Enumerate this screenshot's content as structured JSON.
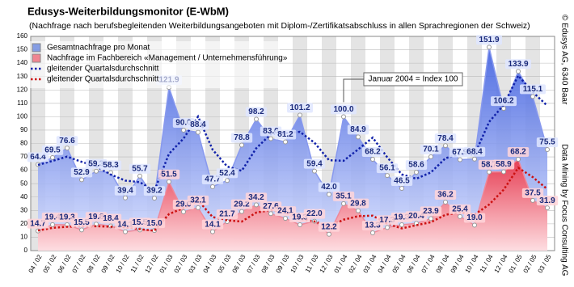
{
  "chart_data": {
    "type": "line",
    "title": "Edusys-Weiterbildungsmonitor (E-WbM)",
    "subtitle": "(Nachfrage nach berufsbegleitenden Weiterbildungsangeboten mit Diplom-/Zertifikatsabschluss in allen Sprachregionen der Schweiz)",
    "categories": [
      "04 / 02",
      "05 / 02",
      "06 / 02",
      "07 / 02",
      "08 / 02",
      "09 / 02",
      "10 / 02",
      "11 / 02",
      "12 / 02",
      "01 / 03",
      "02 / 03",
      "03 / 03",
      "04 / 03",
      "05 / 03",
      "06 / 03",
      "07 / 03",
      "08 / 03",
      "09 / 03",
      "10 / 03",
      "11 / 03",
      "12 / 03",
      "01 / 04",
      "02 / 04",
      "03 / 04",
      "04 / 04",
      "05 / 04",
      "06 / 04",
      "07 / 04",
      "08 / 04",
      "09 / 04",
      "10 / 04",
      "11 / 04",
      "12 / 04",
      "01 / 05",
      "02 / 05",
      "03 / 05"
    ],
    "series": [
      {
        "name": "Gesamtnachfrage pro Monat",
        "kind": "area",
        "color": "#5577dd",
        "values": [
          64.4,
          69.5,
          76.6,
          52.9,
          59.3,
          58.3,
          39.4,
          55.7,
          39.2,
          121.9,
          90.0,
          88.4,
          47.7,
          52.4,
          78.8,
          98.2,
          83.6,
          81.2,
          101.2,
          59.4,
          42.0,
          100.0,
          84.9,
          68.2,
          56.1,
          46.5,
          58.6,
          70.1,
          78.4,
          67.9,
          68.4,
          151.9,
          106.2,
          133.9,
          115.1,
          75.5
        ],
        "value_labels": [
          "64.4",
          "69.5",
          "76.6",
          "52.9",
          "59.3",
          "58.3",
          "39.4",
          "55.7",
          "39.2",
          "121.9",
          "90.0",
          "88.4",
          "47.7",
          "52.4",
          "78.8",
          "98.2",
          "83.6",
          "81.2",
          "101.2",
          "59.4",
          "42.0",
          "100.0",
          "84.9",
          "68.2",
          "56.1",
          "46.5",
          "58.6",
          "70.1",
          "78.4",
          "67.9",
          "68.4",
          "151.9",
          "106.2",
          "133.9",
          "115.1",
          "75.5"
        ]
      },
      {
        "name": "Nachfrage im Fachbereich «Management / Unternehmensführung»",
        "kind": "area",
        "color": "#ee5566",
        "values": [
          14.7,
          19.4,
          19.3,
          15.5,
          19.8,
          18.4,
          14.1,
          15.5,
          15.0,
          51.5,
          29.0,
          32.1,
          14.1,
          21.7,
          29.2,
          34.2,
          27.6,
          24.1,
          19.3,
          22.0,
          12.2,
          35.1,
          29.8,
          13.3,
          17.3,
          19.3,
          20.4,
          23.9,
          36.2,
          25.4,
          19.0,
          58.7,
          58.9,
          68.2,
          37.5,
          31.9
        ],
        "value_labels": [
          "14.7",
          "19.4",
          "19.3",
          "15.5",
          "19.8",
          "18.4",
          "14.1",
          "15.5",
          "15.0",
          "51.5",
          "29.0",
          "32.1",
          "14.1",
          "21.7",
          "29.2",
          "34.2",
          "27.6",
          "24.1",
          "19.3",
          "22.0",
          "12.2",
          "35.1",
          "29.8",
          "13.3",
          "17.3",
          "19.3",
          "20.4",
          "23.9",
          "36.2",
          "25.4",
          "19.0",
          "58.7",
          "58.9",
          "68.2",
          "37.5",
          "31.9"
        ]
      },
      {
        "name": "gleitender Quartalsdurchschnitt",
        "kind": "dotted",
        "color": "#1122aa",
        "values": [
          64,
          67,
          70.2,
          66.3,
          62.9,
          56.8,
          52.3,
          51.1,
          44.8,
          72.3,
          83.7,
          100.1,
          75.4,
          62.8,
          59.6,
          76.5,
          86.9,
          87.7,
          88.7,
          80.6,
          67.5,
          67.1,
          75.6,
          84.4,
          69.7,
          56.9,
          53.7,
          58.4,
          69.0,
          72.1,
          71.6,
          96.1,
          108.8,
          130.7,
          118.4,
          108.2
        ]
      },
      {
        "name": "gleitender Quartalsdurchschnitt",
        "kind": "dotted",
        "color": "#cc1111",
        "values": [
          15,
          17,
          17.8,
          18.1,
          18.2,
          17.9,
          17.4,
          16.0,
          14.9,
          27.3,
          31.8,
          37.5,
          25.1,
          22.6,
          21.7,
          28.4,
          30.3,
          28.6,
          23.7,
          21.8,
          17.8,
          23.1,
          25.7,
          26.1,
          20.1,
          16.6,
          19.0,
          21.2,
          26.8,
          28.5,
          26.9,
          34.4,
          45.5,
          61.9,
          54.9,
          45.9
        ]
      }
    ],
    "ylim": [
      0,
      160
    ],
    "yticks": [
      0,
      10,
      20,
      30,
      40,
      50,
      60,
      70,
      80,
      90,
      100,
      110,
      120,
      130,
      140,
      150,
      160
    ],
    "grid": true,
    "annotation": "Januar 2004 = Index 100",
    "credits": [
      "© Edusys AG, 6340 Baar",
      "Data Mining by Focus Consulting AG"
    ]
  }
}
